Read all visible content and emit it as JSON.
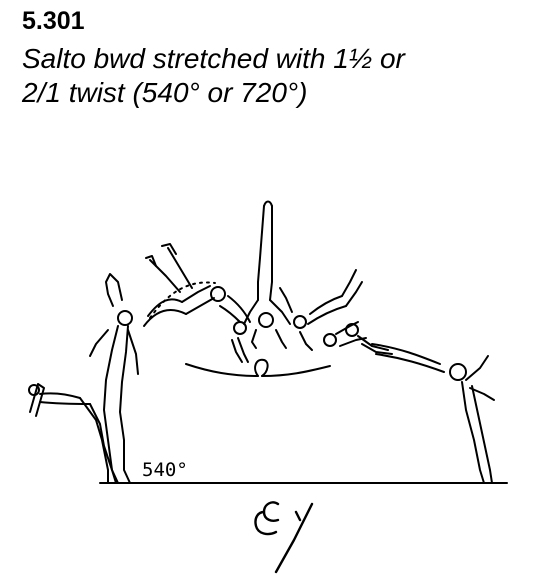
{
  "element": {
    "code": "5.301",
    "description_line1": "Salto bwd stretched with 1½  or",
    "description_line2": "2/1 twist (540° or 720°)"
  },
  "illustration": {
    "rotation_label": "540°"
  }
}
